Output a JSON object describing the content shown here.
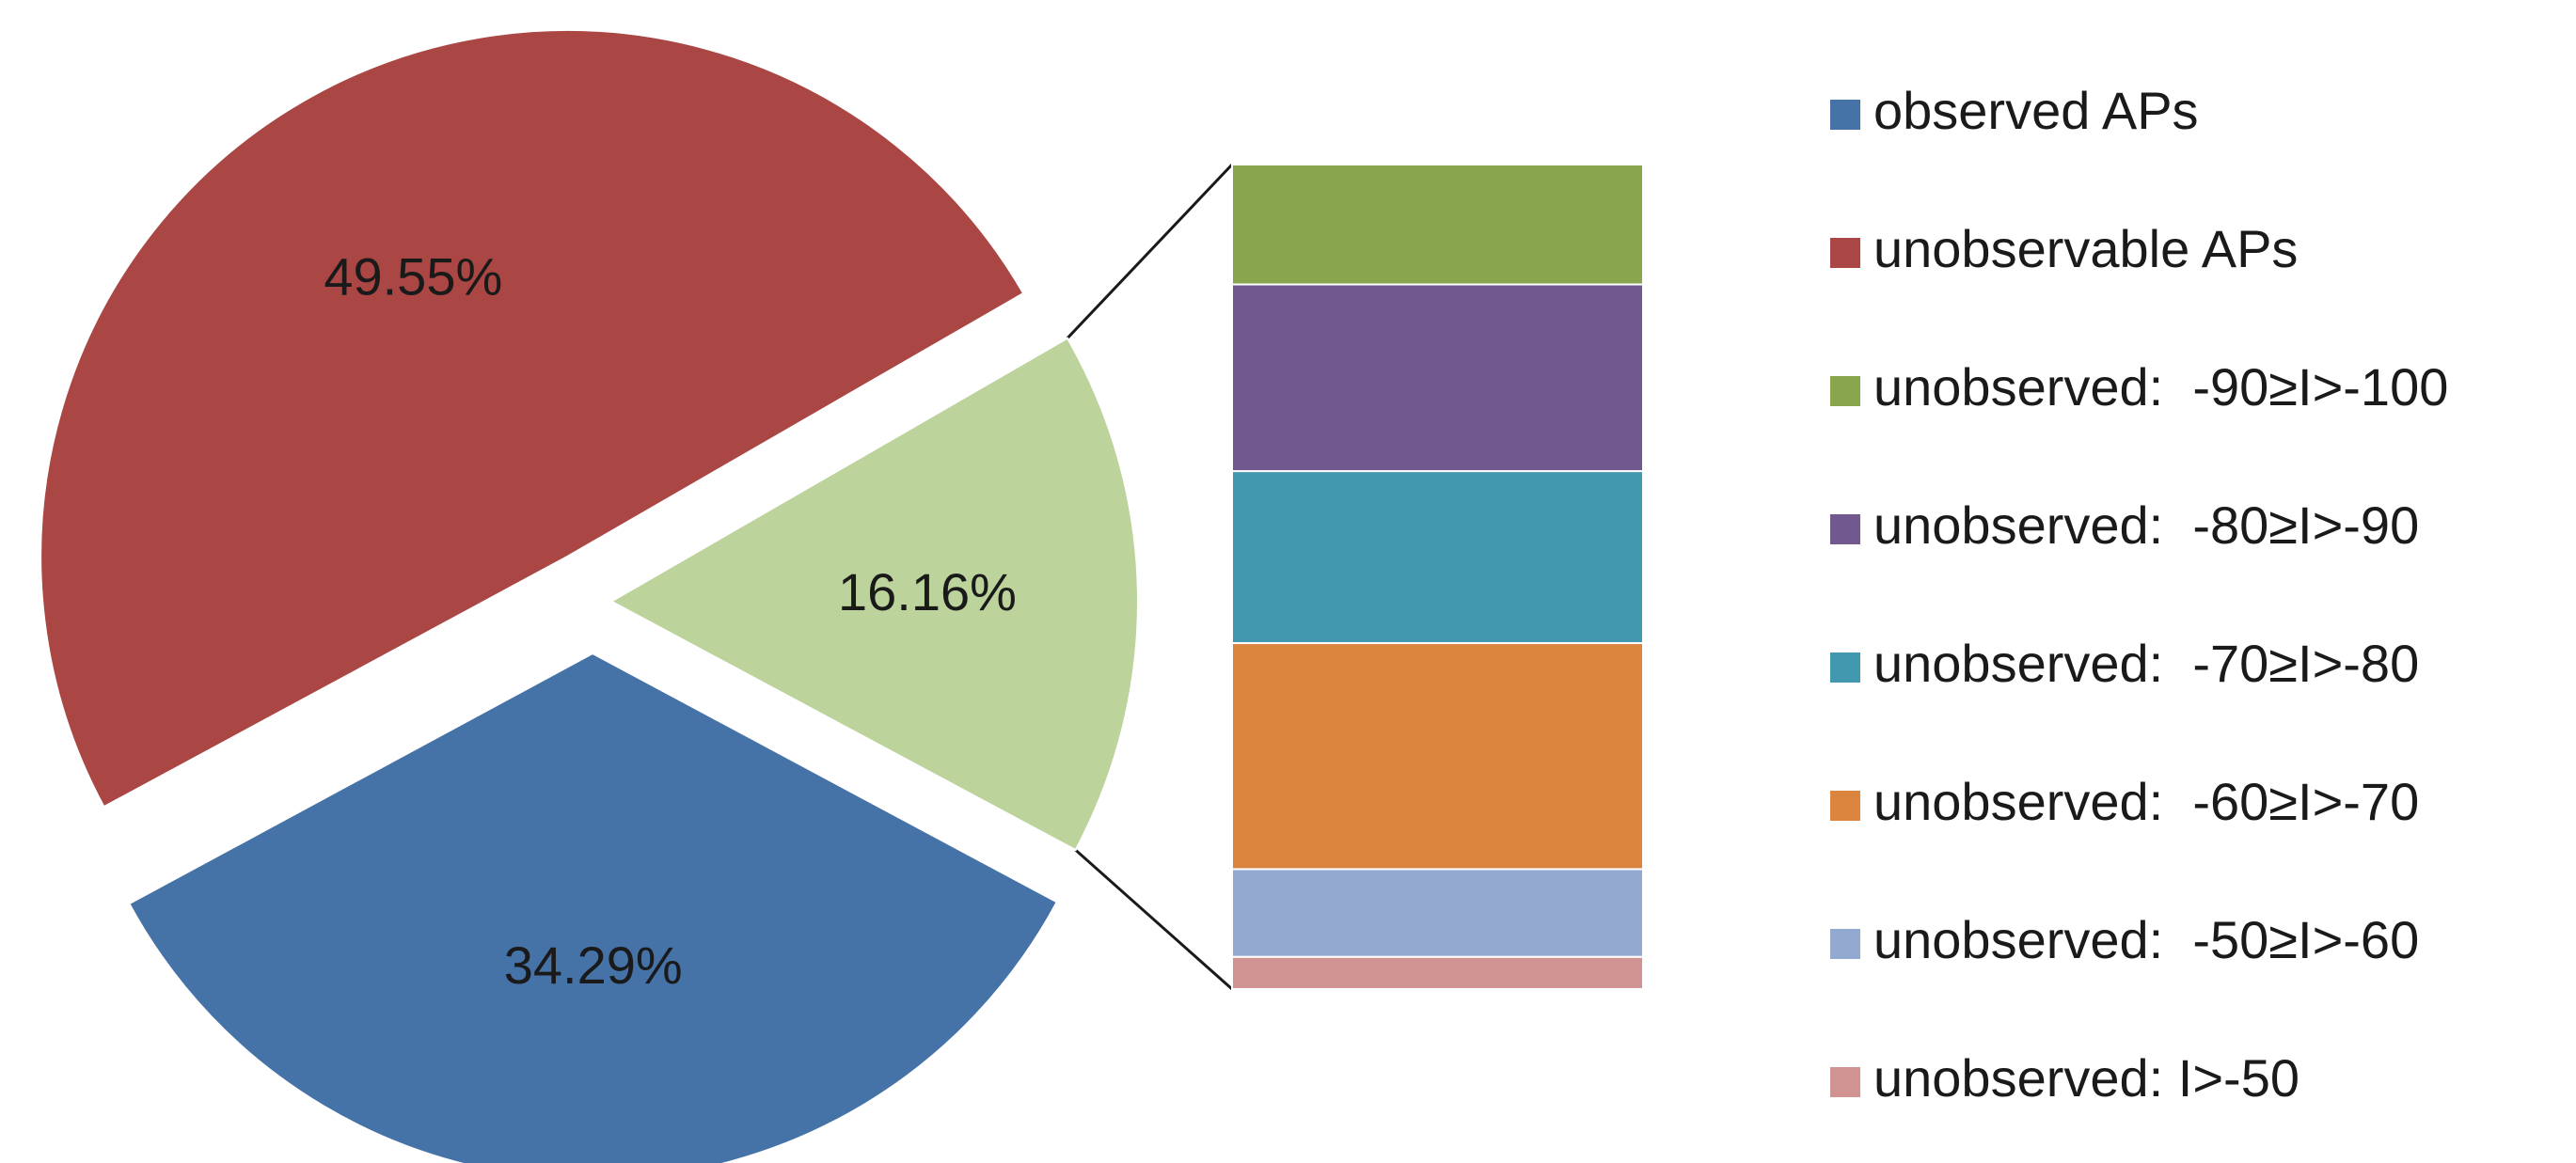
{
  "chart_data": {
    "type": "pie",
    "variant": "bar-of-pie",
    "title": "",
    "grid": false,
    "legend_position": "right",
    "pie": {
      "slices": [
        {
          "name": "observed APs",
          "value": 34.29,
          "label": "34.29%",
          "color": "#4572a7"
        },
        {
          "name": "unobservable APs",
          "value": 49.55,
          "label": "49.55%",
          "color": "#aa4643"
        },
        {
          "name": "unobserved",
          "value": 16.16,
          "label": "16.16%",
          "color": "#bcd39b"
        }
      ]
    },
    "breakdown_of": "unobserved",
    "breakdown": {
      "segments": [
        {
          "name": "unobserved:  -90≥I>-100",
          "value": 2.35,
          "color": "#89a54e"
        },
        {
          "name": "unobserved:  -80≥I>-90",
          "value": 3.66,
          "color": "#71588f"
        },
        {
          "name": "unobserved:  -70≥I>-80",
          "value": 3.37,
          "color": "#4198af"
        },
        {
          "name": "unobserved:  -60≥I>-70",
          "value": 4.43,
          "color": "#db843d"
        },
        {
          "name": "unobserved:  -50≥I>-60",
          "value": 1.72,
          "color": "#93a9cf"
        },
        {
          "name": "unobserved: I>-50",
          "value": 0.63,
          "color": "#d19392"
        }
      ]
    },
    "legend": [
      {
        "label": "observed APs",
        "color": "#4572a7"
      },
      {
        "label": "unobservable APs",
        "color": "#aa4643"
      },
      {
        "label": "unobserved:  -90≥I>-100",
        "color": "#89a54e"
      },
      {
        "label": "unobserved:  -80≥I>-90",
        "color": "#71588f"
      },
      {
        "label": "unobserved:  -70≥I>-80",
        "color": "#4198af"
      },
      {
        "label": "unobserved:  -60≥I>-70",
        "color": "#db843d"
      },
      {
        "label": "unobserved:  -50≥I>-60",
        "color": "#93a9cf"
      },
      {
        "label": "unobserved: I>-50",
        "color": "#d19392"
      }
    ],
    "connector_color": "#1a1a1a"
  }
}
